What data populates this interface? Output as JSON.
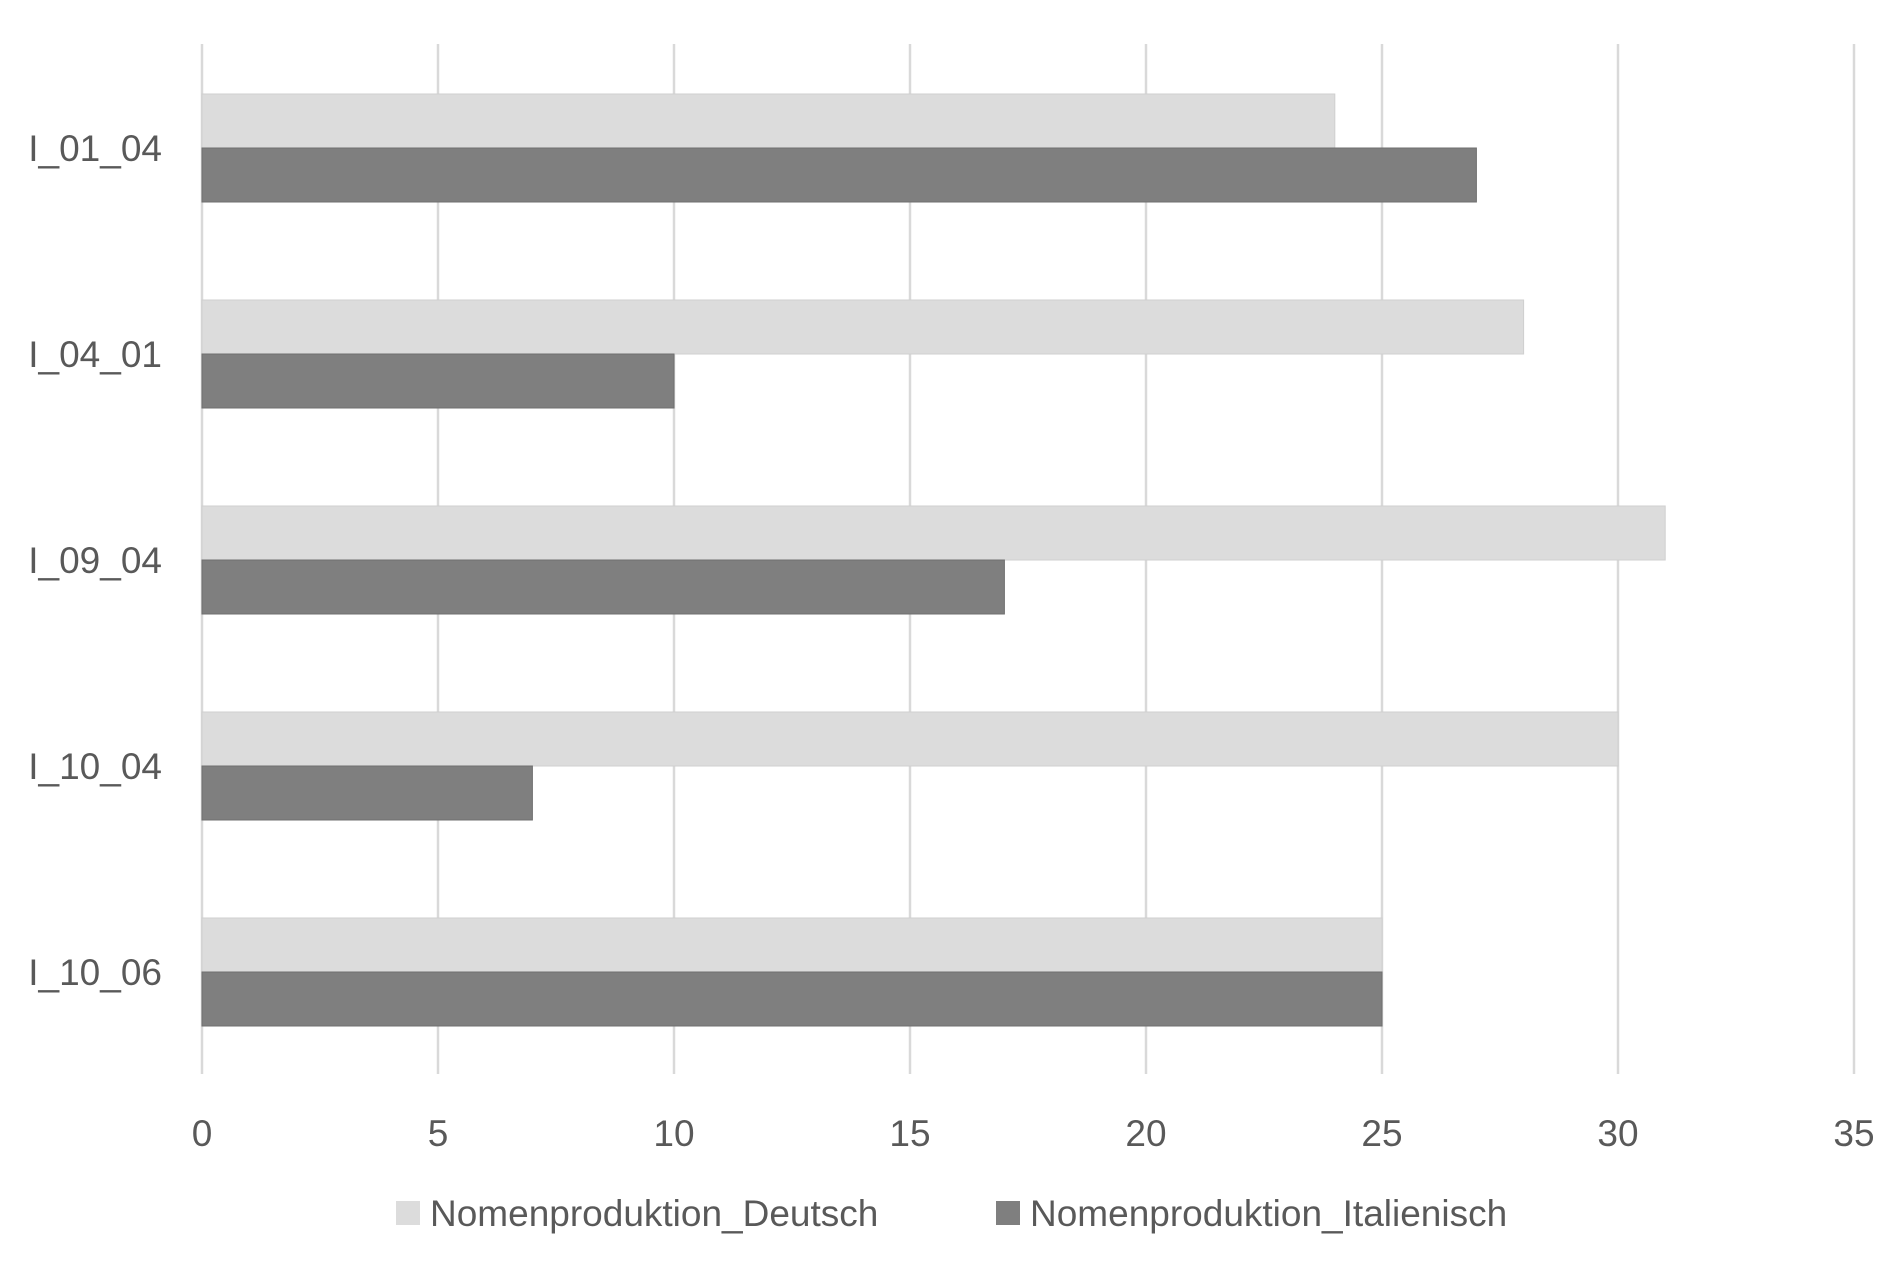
{
  "chart_data": {
    "type": "bar",
    "orientation": "horizontal",
    "categories": [
      "I_01_04",
      "I_04_01",
      "I_09_04",
      "I_10_04",
      "I_10_06"
    ],
    "series": [
      {
        "name": "Nomenproduktion_Deutsch",
        "values": [
          24,
          28,
          31,
          30,
          25
        ],
        "color": "#dcdcdc"
      },
      {
        "name": "Nomenproduktion_Italienisch",
        "values": [
          27,
          10,
          17,
          7,
          25
        ],
        "color": "#7f7f7f"
      }
    ],
    "xlim": [
      0,
      35
    ],
    "xticks": [
      0,
      5,
      10,
      15,
      20,
      25,
      30,
      35
    ],
    "grid": "vertical",
    "legend": "bottom",
    "title": "",
    "xlabel": "",
    "ylabel": ""
  }
}
